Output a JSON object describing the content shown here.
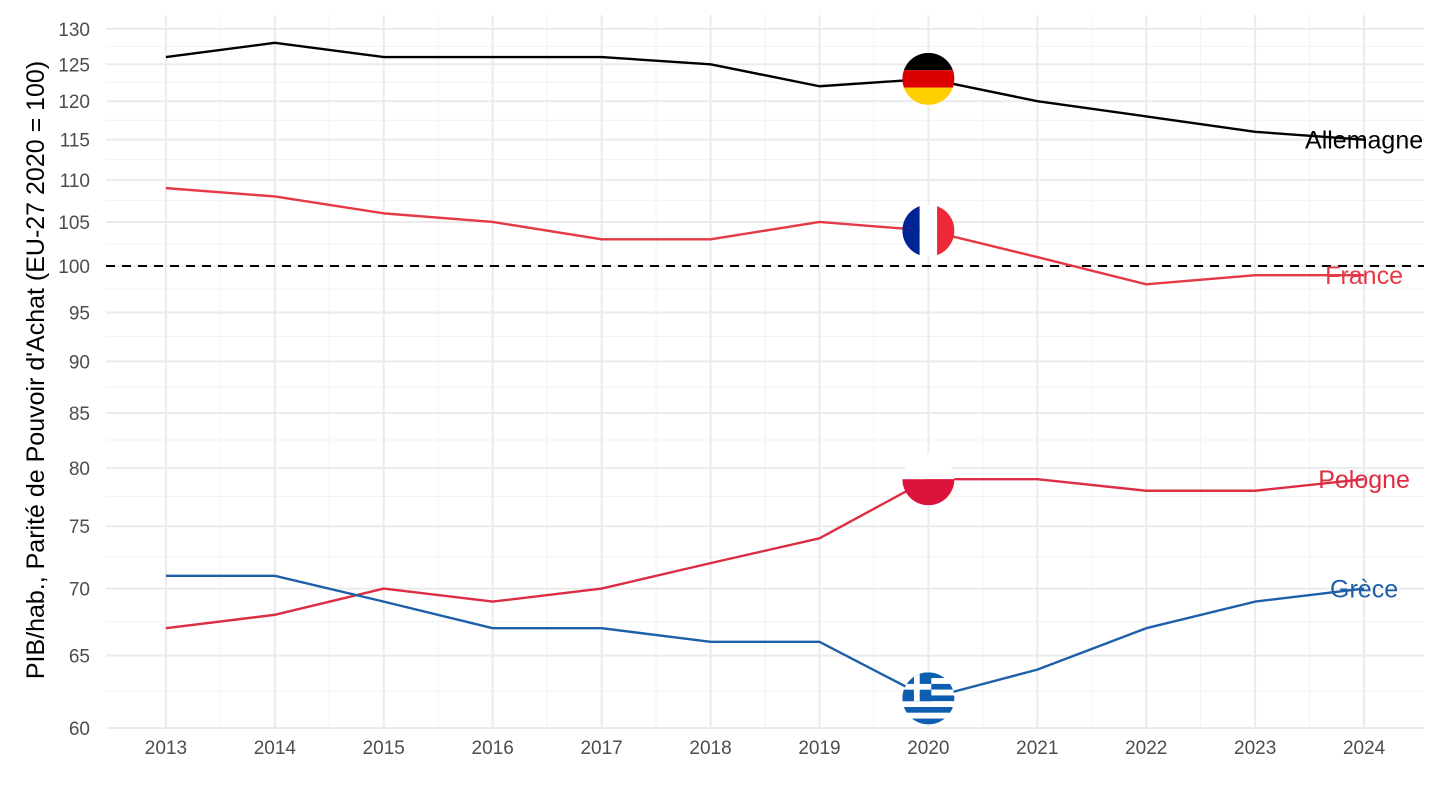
{
  "chart_data": {
    "type": "line",
    "title": "",
    "xlabel": "",
    "ylabel": "PIB/hab., Parité de Pouvoir d'Achat (EU-27 2020 = 100)",
    "y_scale": "log",
    "ylim": [
      60,
      132
    ],
    "xlim": [
      2012.45,
      2024.55
    ],
    "x": [
      2013,
      2014,
      2015,
      2016,
      2017,
      2018,
      2019,
      2020,
      2021,
      2022,
      2023,
      2024
    ],
    "y_ticks": [
      60,
      65,
      70,
      75,
      80,
      85,
      90,
      95,
      100,
      105,
      110,
      115,
      120,
      125,
      130
    ],
    "reference_line": {
      "y": 100,
      "style": "dashed"
    },
    "grid": true,
    "legend": "none",
    "series": [
      {
        "name": "Allemagne",
        "color": "#000000",
        "flag": "germany-flag",
        "values": [
          126,
          128,
          126,
          126,
          126,
          125,
          122,
          123,
          120,
          118,
          116,
          115
        ]
      },
      {
        "name": "France",
        "color": "#e63946",
        "flag": "france-flag",
        "values": [
          109,
          108,
          106,
          105,
          103,
          103,
          105,
          104,
          101,
          98,
          99,
          99
        ]
      },
      {
        "name": "Pologne",
        "color": "#dc2d42",
        "flag": "poland-flag",
        "values": [
          67,
          68,
          70,
          69,
          70,
          72,
          74,
          79,
          79,
          78,
          78,
          79
        ]
      },
      {
        "name": "Grèce",
        "color": "#1d5fa8",
        "flag": "greece-flag",
        "values": [
          71,
          71,
          69,
          67,
          67,
          66,
          66,
          62,
          64,
          67,
          69,
          70
        ]
      }
    ]
  }
}
